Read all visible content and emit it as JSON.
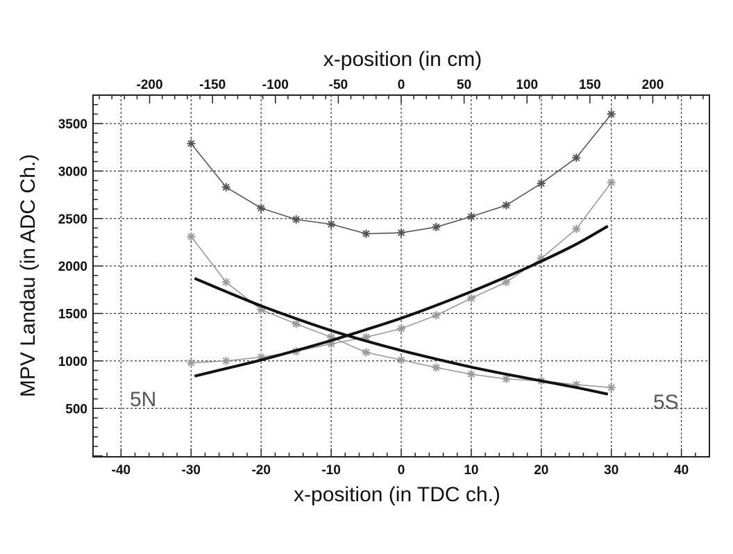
{
  "chart_data": {
    "type": "line",
    "xlabel": "x-position (in TDC ch.)",
    "x2label": "x-position (in cm)",
    "ylabel": "MPV Landau (in ADC Ch.)",
    "xlim": [
      -44,
      44
    ],
    "ylim": [
      -10,
      3800
    ],
    "x2lim": [
      -245,
      245
    ],
    "grid": true,
    "x_ticks": [
      -40,
      -30,
      -20,
      -10,
      0,
      10,
      20,
      30,
      40
    ],
    "y_ticks": [
      500,
      1000,
      1500,
      2000,
      2500,
      3000,
      3500
    ],
    "x2_ticks": [
      -200,
      -150,
      -100,
      -50,
      0,
      50,
      100,
      150,
      200
    ],
    "annotations": [
      "5N",
      "5S"
    ],
    "series": [
      {
        "style": "markers-dark",
        "color": "#555555",
        "x": [
          -30,
          -25,
          -20,
          -15,
          -10,
          -5,
          0,
          5,
          10,
          15,
          20,
          25,
          30
        ],
        "values": [
          3290,
          2830,
          2610,
          2490,
          2440,
          2340,
          2350,
          2410,
          2520,
          2640,
          2870,
          3140,
          3600
        ]
      },
      {
        "style": "markers-light-falling",
        "color": "#9a9a9a",
        "x": [
          -30,
          -25,
          -20,
          -15,
          -10,
          -5,
          0,
          5,
          10,
          15,
          20,
          25,
          30
        ],
        "values": [
          2310,
          1830,
          1540,
          1390,
          1250,
          1090,
          1010,
          930,
          860,
          810,
          790,
          750,
          720
        ]
      },
      {
        "style": "markers-light-rising",
        "color": "#9a9a9a",
        "x": [
          -30,
          -25,
          -20,
          -15,
          -10,
          -5,
          0,
          5,
          10,
          15,
          20,
          25,
          30
        ],
        "values": [
          980,
          1000,
          1040,
          1100,
          1180,
          1250,
          1340,
          1480,
          1660,
          1830,
          2080,
          2390,
          2880
        ]
      },
      {
        "style": "fit-curve",
        "color": "#111111",
        "x": [
          -29.5,
          -25,
          -20,
          -15,
          -10,
          -5,
          0,
          5,
          10,
          15,
          20,
          25,
          29.5
        ],
        "values": [
          1870,
          1730,
          1580,
          1445,
          1320,
          1210,
          1110,
          1020,
          935,
          860,
          790,
          720,
          650
        ]
      },
      {
        "style": "fit-curve",
        "color": "#111111",
        "x": [
          -29.5,
          -25,
          -20,
          -15,
          -10,
          -5,
          0,
          5,
          10,
          15,
          20,
          25,
          29.5
        ],
        "values": [
          840,
          920,
          1010,
          1110,
          1215,
          1330,
          1450,
          1585,
          1730,
          1885,
          2050,
          2230,
          2420
        ]
      }
    ]
  }
}
